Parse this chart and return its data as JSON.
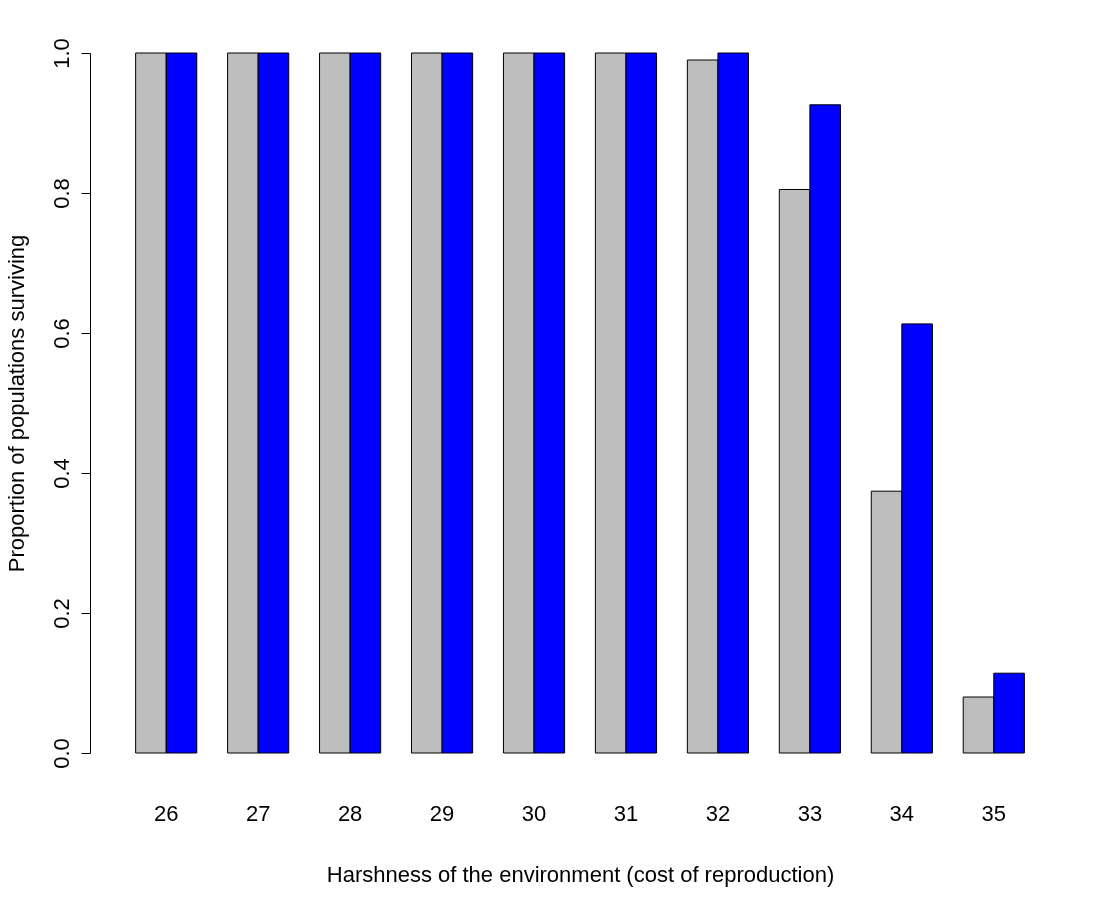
{
  "chart_data": {
    "type": "bar",
    "xlabel": "Harshness of the environment (cost of reproduction)",
    "ylabel": "Proportion of populations surviving",
    "categories": [
      "26",
      "27",
      "28",
      "29",
      "30",
      "31",
      "32",
      "33",
      "34",
      "35"
    ],
    "series": [
      {
        "color": "#bebebe",
        "values": [
          1,
          1,
          1,
          1,
          1,
          1,
          0.99,
          0.805,
          0.374,
          0.08
        ]
      },
      {
        "color": "#0000ff",
        "values": [
          1,
          1,
          1,
          1,
          1,
          1,
          1,
          0.926,
          0.613,
          0.114
        ]
      }
    ],
    "ylim": [
      0,
      1
    ],
    "yticks": [
      {
        "value": 0,
        "label": "0.0"
      },
      {
        "value": 0.2,
        "label": "0.2"
      },
      {
        "value": 0.4,
        "label": "0.4"
      },
      {
        "value": 0.6,
        "label": "0.6"
      },
      {
        "value": 0.8,
        "label": "0.8"
      },
      {
        "value": 1,
        "label": "1.0"
      }
    ],
    "grid": false,
    "legend": false
  }
}
